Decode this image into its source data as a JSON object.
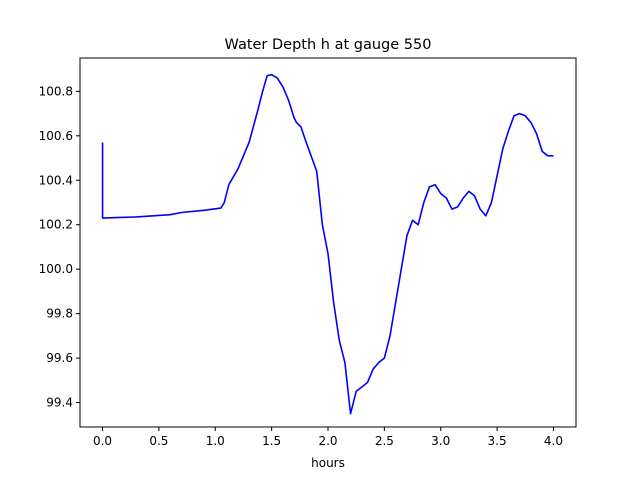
{
  "chart_data": {
    "type": "line",
    "title": "Water Depth h at gauge 550",
    "xlabel": "hours",
    "ylabel": "",
    "xlim": [
      -0.2,
      4.2
    ],
    "ylim": [
      99.29,
      100.95
    ],
    "xticks": [
      0.0,
      0.5,
      1.0,
      1.5,
      2.0,
      2.5,
      3.0,
      3.5,
      4.0
    ],
    "xtick_labels": [
      "0.0",
      "0.5",
      "1.0",
      "1.5",
      "2.0",
      "2.5",
      "3.0",
      "3.5",
      "4.0"
    ],
    "yticks": [
      99.4,
      99.6,
      99.8,
      100.0,
      100.2,
      100.4,
      100.6,
      100.8
    ],
    "ytick_labels": [
      "99.4",
      "99.6",
      "99.8",
      "100.0",
      "100.2",
      "100.4",
      "100.6",
      "100.8"
    ],
    "grid": false,
    "legend": "none",
    "series": [
      {
        "color": "#0000ff",
        "x": [
          0.0,
          0.0,
          0.3,
          0.6,
          0.7,
          0.9,
          1.05,
          1.08,
          1.12,
          1.2,
          1.3,
          1.38,
          1.42,
          1.46,
          1.5,
          1.55,
          1.6,
          1.65,
          1.7,
          1.72,
          1.76,
          1.8,
          1.85,
          1.9,
          1.95,
          2.0,
          2.05,
          2.1,
          2.15,
          2.2,
          2.25,
          2.3,
          2.35,
          2.4,
          2.45,
          2.5,
          2.55,
          2.6,
          2.65,
          2.7,
          2.75,
          2.8,
          2.85,
          2.9,
          2.95,
          3.0,
          3.05,
          3.1,
          3.15,
          3.2,
          3.25,
          3.3,
          3.35,
          3.4,
          3.45,
          3.5,
          3.55,
          3.6,
          3.65,
          3.7,
          3.75,
          3.8,
          3.85,
          3.9,
          3.95,
          4.0
        ],
        "y": [
          100.57,
          100.23,
          100.235,
          100.245,
          100.255,
          100.265,
          100.275,
          100.3,
          100.38,
          100.45,
          100.57,
          100.72,
          100.8,
          100.87,
          100.875,
          100.86,
          100.82,
          100.76,
          100.68,
          100.66,
          100.64,
          100.58,
          100.51,
          100.44,
          100.2,
          100.07,
          99.85,
          99.68,
          99.58,
          99.35,
          99.45,
          99.47,
          99.49,
          99.55,
          99.58,
          99.6,
          99.7,
          99.85,
          100.0,
          100.15,
          100.22,
          100.2,
          100.3,
          100.37,
          100.38,
          100.34,
          100.32,
          100.27,
          100.28,
          100.32,
          100.35,
          100.33,
          100.27,
          100.24,
          100.3,
          100.42,
          100.54,
          100.62,
          100.69,
          100.7,
          100.69,
          100.66,
          100.61,
          100.53,
          100.51,
          100.51
        ]
      }
    ]
  }
}
